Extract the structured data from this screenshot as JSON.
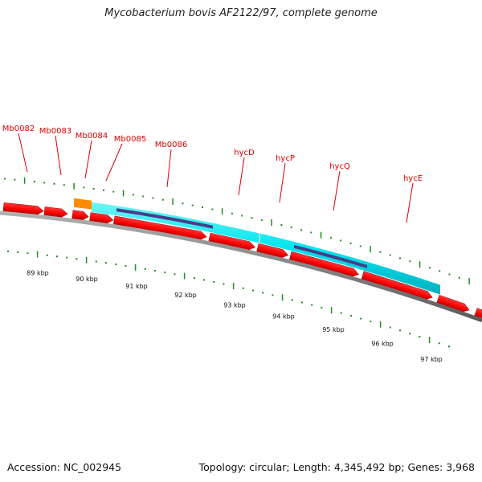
{
  "title": "Mycobacterium bovis AF2122/97, complete genome",
  "footer": {
    "accession": "Accession: NC_002945",
    "summary": "Topology: circular; Length: 4,345,492 bp; Genes: 3,968"
  },
  "colors": {
    "gene": "#ff0000",
    "gene_shadow": "#9e0000",
    "backbone": "#808080",
    "tick": "#228b22",
    "cds_feature": "#00e5ee",
    "domain_feature": "#483d8b",
    "orange_feature": "#ff8c00",
    "label": "#dd0000"
  },
  "kbp_labels": [
    "89 kbp",
    "90 kbp",
    "91 kbp",
    "92 kbp",
    "93 kbp",
    "94 kbp",
    "95 kbp",
    "96 kbp",
    "97 kbp"
  ],
  "gene_labels": [
    "Mb0082",
    "Mb0083",
    "Mb0084",
    "Mb0085",
    "Mb0086",
    "hycD",
    "hycP",
    "hycQ",
    "hycE"
  ]
}
